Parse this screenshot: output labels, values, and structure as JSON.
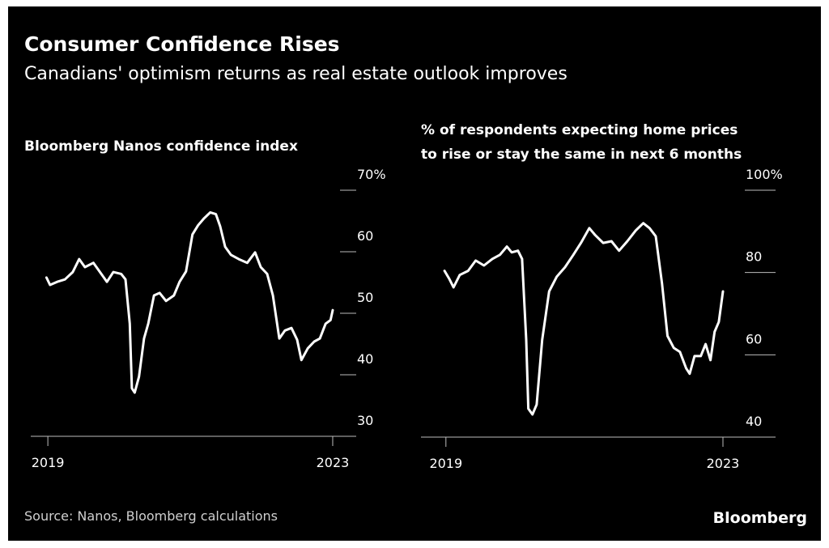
{
  "title": "Consumer Confidence Rises",
  "subtitle": "Canadians' optimism returns as real estate outlook improves",
  "source": "Source: Nanos, Bloomberg calculations",
  "brand": "Bloomberg",
  "chart_data": [
    {
      "type": "line",
      "title": [
        "Bloomberg Nanos confidence index"
      ],
      "color": "#ffffff",
      "x": [
        2018.98,
        2019.03,
        2019.13,
        2019.24,
        2019.35,
        2019.44,
        2019.52,
        2019.64,
        2019.75,
        2019.83,
        2019.92,
        2020.03,
        2020.09,
        2020.15,
        2020.18,
        2020.22,
        2020.28,
        2020.35,
        2020.41,
        2020.49,
        2020.57,
        2020.66,
        2020.77,
        2020.85,
        2020.94,
        2021.03,
        2021.11,
        2021.19,
        2021.28,
        2021.36,
        2021.42,
        2021.49,
        2021.57,
        2021.68,
        2021.8,
        2021.91,
        2021.99,
        2022.08,
        2022.16,
        2022.25,
        2022.33,
        2022.42,
        2022.5,
        2022.56,
        2022.65,
        2022.74,
        2022.82,
        2022.9,
        2022.97,
        2023.0
      ],
      "values": [
        55.8,
        54.6,
        55.1,
        55.5,
        56.7,
        58.8,
        57.5,
        58.2,
        56.4,
        55.1,
        56.7,
        56.4,
        55.5,
        48.3,
        37.8,
        37.1,
        39.7,
        45.9,
        48.3,
        52.9,
        53.3,
        52.0,
        52.9,
        55.1,
        56.8,
        62.8,
        64.3,
        65.4,
        66.4,
        66.1,
        64.1,
        60.8,
        59.5,
        58.8,
        58.2,
        59.9,
        57.5,
        56.4,
        52.9,
        45.9,
        47.2,
        47.6,
        45.7,
        42.4,
        44.3,
        45.4,
        45.9,
        48.3,
        48.9,
        50.5
      ],
      "xlim": [
        2018.76,
        2023.33
      ],
      "xticks": [
        2019,
        2023
      ],
      "ylim": [
        30,
        70
      ],
      "yticks": [
        30,
        40,
        50,
        60,
        {
          "value": 70,
          "label": "70%"
        }
      ]
    },
    {
      "type": "line",
      "title": [
        "% of respondents expecting home prices",
        "to rise or stay the same in next 6 months"
      ],
      "color": "#ffffff",
      "x": [
        2018.98,
        2019.05,
        2019.11,
        2019.2,
        2019.32,
        2019.43,
        2019.55,
        2019.67,
        2019.78,
        2019.88,
        2019.95,
        2020.04,
        2020.1,
        2020.16,
        2020.19,
        2020.25,
        2020.31,
        2020.39,
        2020.49,
        2020.6,
        2020.72,
        2020.84,
        2020.95,
        2021.07,
        2021.15,
        2021.27,
        2021.39,
        2021.5,
        2021.62,
        2021.74,
        2021.85,
        2021.94,
        2022.03,
        2022.12,
        2022.2,
        2022.29,
        2022.38,
        2022.47,
        2022.52,
        2022.59,
        2022.68,
        2022.75,
        2022.82,
        2022.88,
        2022.94,
        2023.0
      ],
      "values": [
        80.4,
        78.4,
        76.4,
        79.4,
        80.4,
        82.9,
        81.7,
        83.3,
        84.3,
        86.3,
        84.9,
        85.3,
        83.3,
        63.6,
        46.9,
        45.5,
        47.9,
        63.6,
        75.4,
        79.0,
        81.3,
        84.3,
        87.2,
        90.8,
        89.2,
        87.2,
        87.6,
        85.3,
        87.6,
        90.2,
        92.0,
        90.8,
        88.8,
        77.4,
        64.6,
        61.7,
        60.7,
        56.7,
        55.4,
        59.7,
        59.7,
        62.6,
        58.7,
        65.6,
        68.0,
        75.4
      ],
      "xlim": [
        2018.64,
        2023.76
      ],
      "xticks": [
        2019,
        2023
      ],
      "ylim": [
        40,
        100
      ],
      "yticks": [
        40,
        60,
        80,
        {
          "value": 100,
          "label": "100%"
        }
      ]
    }
  ]
}
